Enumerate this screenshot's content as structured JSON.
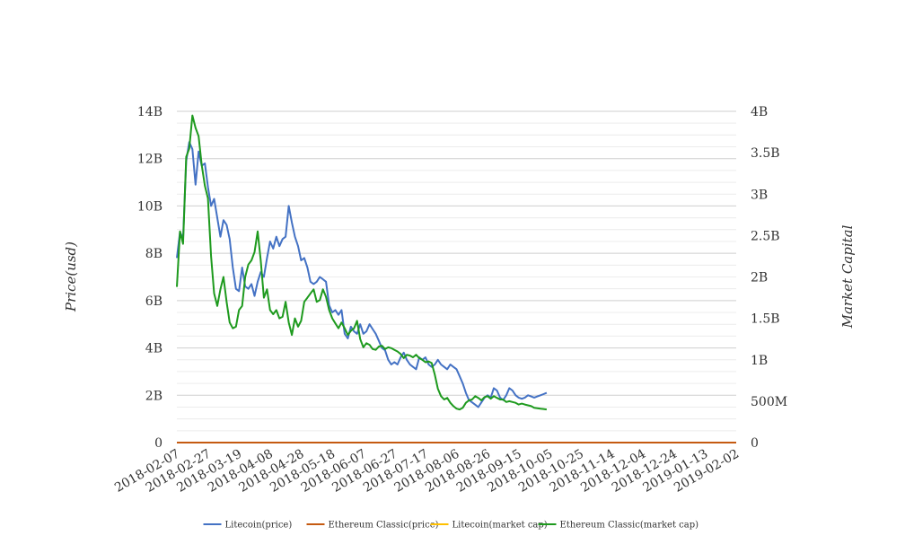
{
  "chart_data": {
    "type": "line",
    "title": "",
    "ylabel_left": "Price(usd)",
    "ylabel_right": "Market Capital",
    "ylim_left": [
      0,
      14000000000
    ],
    "ylim_right": [
      0,
      4000000000
    ],
    "y_ticks_left": [
      "0",
      "2B",
      "4B",
      "6B",
      "8B",
      "10B",
      "12B",
      "14B"
    ],
    "y_ticks_right": [
      "0",
      "500M",
      "1B",
      "1.5B",
      "2B",
      "2.5B",
      "3B",
      "3.5B",
      "4B"
    ],
    "x_labels": [
      "2018-02-07",
      "2018-02-27",
      "2018-03-19",
      "2018-04-08",
      "2018-04-28",
      "2018-05-18",
      "2018-06-07",
      "2018-06-27",
      "2018-07-17",
      "2018-08-06",
      "2018-08-26",
      "2018-09-15",
      "2018-10-05",
      "2018-10-25",
      "2018-11-14",
      "2018-12-04",
      "2018-12-24",
      "2019-01-13",
      "2019-02-02"
    ],
    "grid": true,
    "legend_position": "bottom",
    "series": [
      {
        "name": "Litecoin(price)",
        "axis": "left",
        "color": "#4472c4",
        "points": [
          [
            "2018-02-07",
            7800000000
          ],
          [
            "2018-02-09",
            8900000000
          ],
          [
            "2018-02-11",
            8600000000
          ],
          [
            "2018-02-13",
            11900000000
          ],
          [
            "2018-02-15",
            12700000000
          ],
          [
            "2018-02-17",
            12400000000
          ],
          [
            "2018-02-19",
            10900000000
          ],
          [
            "2018-02-21",
            12300000000
          ],
          [
            "2018-02-23",
            11700000000
          ],
          [
            "2018-02-25",
            11800000000
          ],
          [
            "2018-02-27",
            10800000000
          ],
          [
            "2018-02-29",
            10000000000
          ],
          [
            "2018-03-03",
            10300000000
          ],
          [
            "2018-03-05",
            9500000000
          ],
          [
            "2018-03-07",
            8700000000
          ],
          [
            "2018-03-09",
            9400000000
          ],
          [
            "2018-03-11",
            9200000000
          ],
          [
            "2018-03-13",
            8600000000
          ],
          [
            "2018-03-15",
            7400000000
          ],
          [
            "2018-03-17",
            6500000000
          ],
          [
            "2018-03-19",
            6400000000
          ],
          [
            "2018-03-21",
            7400000000
          ],
          [
            "2018-03-23",
            6600000000
          ],
          [
            "2018-03-25",
            6500000000
          ],
          [
            "2018-03-27",
            6700000000
          ],
          [
            "2018-03-29",
            6200000000
          ],
          [
            "2018-03-31",
            6800000000
          ],
          [
            "2018-04-02",
            7200000000
          ],
          [
            "2018-04-04",
            7000000000
          ],
          [
            "2018-04-06",
            7800000000
          ],
          [
            "2018-04-08",
            8500000000
          ],
          [
            "2018-04-10",
            8200000000
          ],
          [
            "2018-04-12",
            8700000000
          ],
          [
            "2018-04-14",
            8300000000
          ],
          [
            "2018-04-16",
            8600000000
          ],
          [
            "2018-04-18",
            8700000000
          ],
          [
            "2018-04-20",
            10000000000
          ],
          [
            "2018-04-22",
            9300000000
          ],
          [
            "2018-04-24",
            8700000000
          ],
          [
            "2018-04-26",
            8300000000
          ],
          [
            "2018-04-28",
            7700000000
          ],
          [
            "2018-04-30",
            7800000000
          ],
          [
            "2018-05-02",
            7400000000
          ],
          [
            "2018-05-04",
            6800000000
          ],
          [
            "2018-05-06",
            6700000000
          ],
          [
            "2018-05-08",
            6800000000
          ],
          [
            "2018-05-10",
            7000000000
          ],
          [
            "2018-05-12",
            6900000000
          ],
          [
            "2018-05-14",
            6800000000
          ],
          [
            "2018-05-16",
            5800000000
          ],
          [
            "2018-05-18",
            5500000000
          ],
          [
            "2018-05-20",
            5600000000
          ],
          [
            "2018-05-22",
            5400000000
          ],
          [
            "2018-05-24",
            5600000000
          ],
          [
            "2018-05-26",
            4600000000
          ],
          [
            "2018-05-28",
            4400000000
          ],
          [
            "2018-05-30",
            4900000000
          ],
          [
            "2018-06-01",
            4700000000
          ],
          [
            "2018-06-03",
            4600000000
          ],
          [
            "2018-06-05",
            5000000000
          ],
          [
            "2018-06-07",
            4600000000
          ],
          [
            "2018-06-09",
            4700000000
          ],
          [
            "2018-06-11",
            5000000000
          ],
          [
            "2018-06-13",
            4800000000
          ],
          [
            "2018-06-15",
            4600000000
          ],
          [
            "2018-06-17",
            4300000000
          ],
          [
            "2018-06-19",
            4000000000
          ],
          [
            "2018-06-21",
            3900000000
          ],
          [
            "2018-06-23",
            3500000000
          ],
          [
            "2018-06-25",
            3300000000
          ],
          [
            "2018-06-27",
            3400000000
          ],
          [
            "2018-06-29",
            3300000000
          ],
          [
            "2018-07-01",
            3600000000
          ],
          [
            "2018-07-03",
            3800000000
          ],
          [
            "2018-07-05",
            3500000000
          ],
          [
            "2018-07-07",
            3300000000
          ],
          [
            "2018-07-09",
            3200000000
          ],
          [
            "2018-07-11",
            3100000000
          ],
          [
            "2018-07-13",
            3600000000
          ],
          [
            "2018-07-15",
            3500000000
          ],
          [
            "2018-07-17",
            3600000000
          ],
          [
            "2018-07-19",
            3300000000
          ],
          [
            "2018-07-21",
            3200000000
          ],
          [
            "2018-07-23",
            3300000000
          ],
          [
            "2018-07-25",
            3500000000
          ],
          [
            "2018-07-27",
            3300000000
          ],
          [
            "2018-07-29",
            3200000000
          ],
          [
            "2018-07-31",
            3100000000
          ],
          [
            "2018-08-02",
            3300000000
          ],
          [
            "2018-08-04",
            3200000000
          ],
          [
            "2018-08-06",
            3100000000
          ],
          [
            "2018-08-08",
            2800000000
          ],
          [
            "2018-08-10",
            2500000000
          ],
          [
            "2018-08-12",
            2100000000
          ],
          [
            "2018-08-14",
            1800000000
          ],
          [
            "2018-08-16",
            1700000000
          ],
          [
            "2018-08-18",
            1600000000
          ],
          [
            "2018-08-20",
            1500000000
          ],
          [
            "2018-08-22",
            1700000000
          ],
          [
            "2018-08-24",
            1900000000
          ],
          [
            "2018-08-26",
            2000000000
          ],
          [
            "2018-08-28",
            1900000000
          ],
          [
            "2018-08-30",
            2300000000
          ],
          [
            "2018-09-01",
            2200000000
          ],
          [
            "2018-09-03",
            1900000000
          ],
          [
            "2018-09-05",
            1800000000
          ],
          [
            "2018-09-07",
            2000000000
          ],
          [
            "2018-09-09",
            2300000000
          ],
          [
            "2018-09-11",
            2200000000
          ],
          [
            "2018-09-13",
            2000000000
          ],
          [
            "2018-09-15",
            1900000000
          ],
          [
            "2018-09-17",
            1850000000
          ],
          [
            "2018-09-19",
            1900000000
          ],
          [
            "2018-09-21",
            2000000000
          ],
          [
            "2018-09-23",
            1950000000
          ],
          [
            "2018-09-25",
            1900000000
          ],
          [
            "2018-09-27",
            1950000000
          ],
          [
            "2018-09-29",
            2000000000
          ],
          [
            "2018-10-01",
            2050000000
          ],
          [
            "2018-10-03",
            2100000000
          ]
        ]
      },
      {
        "name": "Ethereum Classic(price)",
        "axis": "left",
        "color": "#c55a11",
        "points": [
          [
            "2018-02-07",
            16
          ],
          [
            "2019-02-02",
            4
          ]
        ]
      },
      {
        "name": "Litecoin(market cap)",
        "axis": "right",
        "color": "#ffc000",
        "points": [
          [
            "2018-02-07",
            0
          ],
          [
            "2019-02-02",
            0
          ]
        ]
      },
      {
        "name": "Ethereum Classic(market cap)",
        "axis": "right",
        "color": "#1e9a1e",
        "points": [
          [
            "2018-02-07",
            1880000000
          ],
          [
            "2018-02-09",
            2550000000
          ],
          [
            "2018-02-11",
            2400000000
          ],
          [
            "2018-02-13",
            3450000000
          ],
          [
            "2018-02-15",
            3550000000
          ],
          [
            "2018-02-17",
            3950000000
          ],
          [
            "2018-02-19",
            3800000000
          ],
          [
            "2018-02-21",
            3700000000
          ],
          [
            "2018-02-23",
            3350000000
          ],
          [
            "2018-02-25",
            3100000000
          ],
          [
            "2018-02-27",
            2950000000
          ],
          [
            "2018-02-29",
            2250000000
          ],
          [
            "2018-03-03",
            1800000000
          ],
          [
            "2018-03-05",
            1650000000
          ],
          [
            "2018-03-07",
            1850000000
          ],
          [
            "2018-03-09",
            2000000000
          ],
          [
            "2018-03-11",
            1700000000
          ],
          [
            "2018-03-13",
            1450000000
          ],
          [
            "2018-03-15",
            1380000000
          ],
          [
            "2018-03-17",
            1400000000
          ],
          [
            "2018-03-19",
            1600000000
          ],
          [
            "2018-03-21",
            1650000000
          ],
          [
            "2018-03-23",
            2000000000
          ],
          [
            "2018-03-25",
            2150000000
          ],
          [
            "2018-03-27",
            2200000000
          ],
          [
            "2018-03-29",
            2300000000
          ],
          [
            "2018-03-31",
            2550000000
          ],
          [
            "2018-04-02",
            2200000000
          ],
          [
            "2018-04-04",
            1750000000
          ],
          [
            "2018-04-06",
            1850000000
          ],
          [
            "2018-04-08",
            1600000000
          ],
          [
            "2018-04-10",
            1550000000
          ],
          [
            "2018-04-12",
            1600000000
          ],
          [
            "2018-04-14",
            1500000000
          ],
          [
            "2018-04-16",
            1520000000
          ],
          [
            "2018-04-18",
            1700000000
          ],
          [
            "2018-04-20",
            1450000000
          ],
          [
            "2018-04-22",
            1300000000
          ],
          [
            "2018-04-24",
            1500000000
          ],
          [
            "2018-04-26",
            1400000000
          ],
          [
            "2018-04-28",
            1470000000
          ],
          [
            "2018-04-30",
            1700000000
          ],
          [
            "2018-05-02",
            1750000000
          ],
          [
            "2018-05-04",
            1800000000
          ],
          [
            "2018-05-06",
            1850000000
          ],
          [
            "2018-05-08",
            1700000000
          ],
          [
            "2018-05-10",
            1720000000
          ],
          [
            "2018-05-12",
            1850000000
          ],
          [
            "2018-05-14",
            1760000000
          ],
          [
            "2018-05-16",
            1600000000
          ],
          [
            "2018-05-18",
            1500000000
          ],
          [
            "2018-05-20",
            1440000000
          ],
          [
            "2018-05-22",
            1380000000
          ],
          [
            "2018-05-24",
            1450000000
          ],
          [
            "2018-05-26",
            1380000000
          ],
          [
            "2018-05-28",
            1300000000
          ],
          [
            "2018-05-30",
            1350000000
          ],
          [
            "2018-06-01",
            1380000000
          ],
          [
            "2018-06-03",
            1470000000
          ],
          [
            "2018-06-05",
            1250000000
          ],
          [
            "2018-06-07",
            1150000000
          ],
          [
            "2018-06-09",
            1200000000
          ],
          [
            "2018-06-11",
            1180000000
          ],
          [
            "2018-06-13",
            1130000000
          ],
          [
            "2018-06-15",
            1120000000
          ],
          [
            "2018-06-17",
            1160000000
          ],
          [
            "2018-06-19",
            1170000000
          ],
          [
            "2018-06-21",
            1130000000
          ],
          [
            "2018-06-23",
            1150000000
          ],
          [
            "2018-06-25",
            1140000000
          ],
          [
            "2018-06-27",
            1120000000
          ],
          [
            "2018-06-29",
            1100000000
          ],
          [
            "2018-07-01",
            1070000000
          ],
          [
            "2018-07-03",
            1020000000
          ],
          [
            "2018-07-05",
            1060000000
          ],
          [
            "2018-07-07",
            1050000000
          ],
          [
            "2018-07-09",
            1030000000
          ],
          [
            "2018-07-11",
            1060000000
          ],
          [
            "2018-07-13",
            1020000000
          ],
          [
            "2018-07-15",
            1000000000
          ],
          [
            "2018-07-17",
            970000000
          ],
          [
            "2018-07-19",
            980000000
          ],
          [
            "2018-07-21",
            960000000
          ],
          [
            "2018-07-23",
            820000000
          ],
          [
            "2018-07-25",
            650000000
          ],
          [
            "2018-07-27",
            560000000
          ],
          [
            "2018-07-29",
            520000000
          ],
          [
            "2018-07-31",
            540000000
          ],
          [
            "2018-08-02",
            480000000
          ],
          [
            "2018-08-04",
            440000000
          ],
          [
            "2018-08-06",
            410000000
          ],
          [
            "2018-08-08",
            400000000
          ],
          [
            "2018-08-10",
            420000000
          ],
          [
            "2018-08-12",
            480000000
          ],
          [
            "2018-08-14",
            510000000
          ],
          [
            "2018-08-16",
            520000000
          ],
          [
            "2018-08-18",
            560000000
          ],
          [
            "2018-08-20",
            540000000
          ],
          [
            "2018-08-22",
            510000000
          ],
          [
            "2018-08-24",
            550000000
          ],
          [
            "2018-08-26",
            560000000
          ],
          [
            "2018-08-28",
            530000000
          ],
          [
            "2018-08-30",
            560000000
          ],
          [
            "2018-09-01",
            540000000
          ],
          [
            "2018-09-03",
            520000000
          ],
          [
            "2018-09-05",
            520000000
          ],
          [
            "2018-09-07",
            490000000
          ],
          [
            "2018-09-09",
            500000000
          ],
          [
            "2018-09-11",
            490000000
          ],
          [
            "2018-09-13",
            480000000
          ],
          [
            "2018-09-15",
            460000000
          ],
          [
            "2018-09-17",
            470000000
          ],
          [
            "2018-09-19",
            460000000
          ],
          [
            "2018-09-21",
            450000000
          ],
          [
            "2018-09-23",
            440000000
          ],
          [
            "2018-09-25",
            420000000
          ],
          [
            "2018-09-27",
            415000000
          ],
          [
            "2018-09-29",
            410000000
          ],
          [
            "2018-10-01",
            405000000
          ],
          [
            "2018-10-03",
            400000000
          ]
        ]
      }
    ]
  }
}
